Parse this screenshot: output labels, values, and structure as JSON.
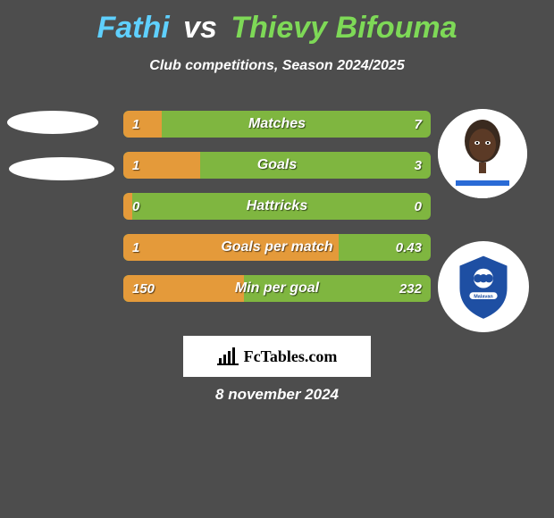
{
  "title": {
    "player_a": "Fathi",
    "vs": "vs",
    "player_b": "Thievy Bifouma",
    "color_a": "#5fd0ff",
    "color_vs": "#ffffff",
    "color_b": "#7ed957"
  },
  "subtitle": "Club competitions, Season 2024/2025",
  "bars": {
    "left_color": "#e49a3a",
    "right_color": "#7fb640",
    "rows": [
      {
        "label": "Matches",
        "left": "1",
        "right": "7",
        "left_pct": 12.5
      },
      {
        "label": "Goals",
        "left": "1",
        "right": "3",
        "left_pct": 25.0
      },
      {
        "label": "Hattricks",
        "left": "0",
        "right": "0",
        "left_pct": 3.0
      },
      {
        "label": "Goals per match",
        "left": "1",
        "right": "0.43",
        "left_pct": 70.0
      },
      {
        "label": "Min per goal",
        "left": "150",
        "right": "232",
        "left_pct": 39.2
      }
    ]
  },
  "footer": {
    "brand": "FcTables.com"
  },
  "date": "8 november 2024",
  "colors": {
    "background": "#4d4d4d",
    "text": "#ffffff"
  }
}
